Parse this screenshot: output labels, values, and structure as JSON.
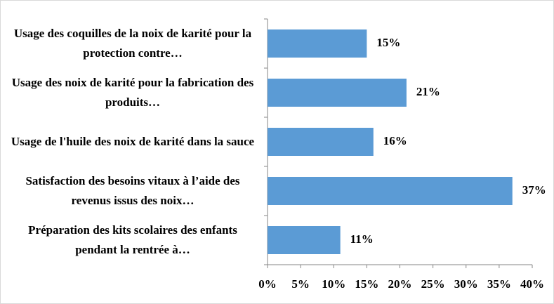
{
  "chart_data": {
    "type": "bar",
    "orientation": "horizontal",
    "categories": [
      "Usage des coquilles de la noix de karité pour la protection contre…",
      "Usage des noix de karité pour la fabrication des produits…",
      "Usage de l'huile des noix de karité dans la sauce",
      "Satisfaction des besoins  vitaux à l’aide des revenus issus des noix…",
      "Préparation des kits scolaires des enfants pendant la rentrée à…"
    ],
    "values": [
      15,
      21,
      16,
      37,
      11
    ],
    "value_labels": [
      "15%",
      "21%",
      "16%",
      "37%",
      "11%"
    ],
    "color": "#5b9bd5",
    "xlim": [
      0,
      40
    ],
    "xticks": [
      {
        "value": 0,
        "label": "0%"
      },
      {
        "value": 5,
        "label": "5%"
      },
      {
        "value": 10,
        "label": "10%"
      },
      {
        "value": 15,
        "label": "15%"
      },
      {
        "value": 20,
        "label": "20%"
      },
      {
        "value": 25,
        "label": "25%"
      },
      {
        "value": 30,
        "label": "30%"
      },
      {
        "value": 35,
        "label": "35%"
      },
      {
        "value": 40,
        "label": "40%"
      }
    ],
    "grid": false
  }
}
